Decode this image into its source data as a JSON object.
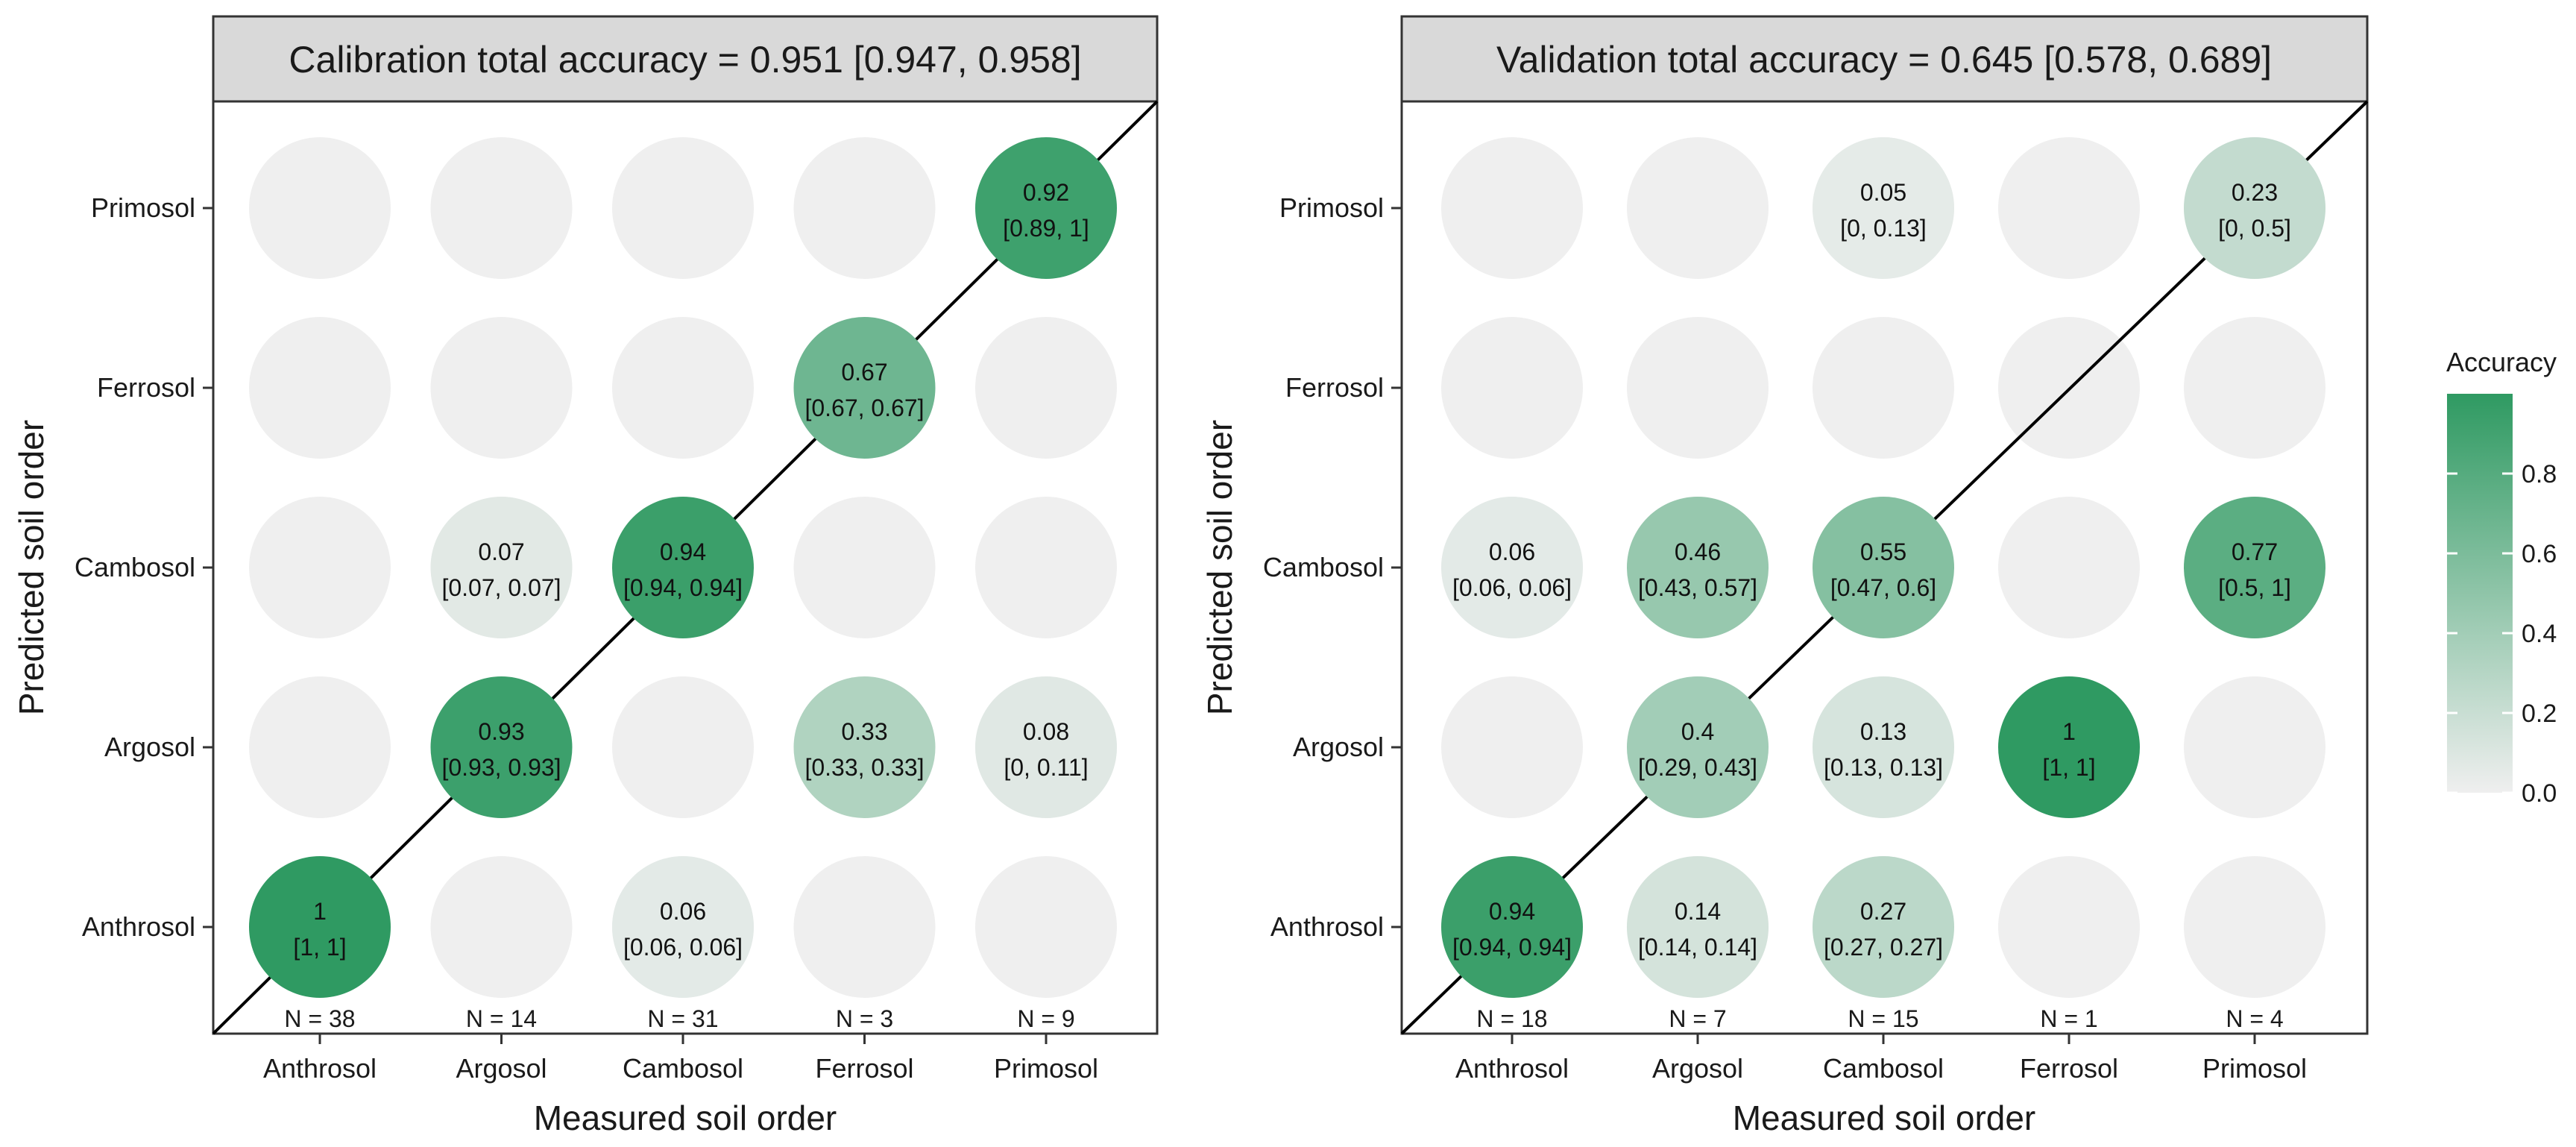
{
  "chart_data": [
    {
      "type": "bubble-confusion-matrix",
      "title": "Calibration total accuracy = 0.951 [0.947, 0.958]",
      "xlabel": "Measured soil order",
      "ylabel": "Predicted soil order",
      "categories": [
        "Anthrosol",
        "Argosol",
        "Cambosol",
        "Ferrosol",
        "Primosol"
      ],
      "n_labels": [
        "N = 38",
        "N = 14",
        "N = 31",
        "N = 3",
        "N = 9"
      ],
      "cells": [
        {
          "measured": "Anthrosol",
          "predicted": "Anthrosol",
          "value": 1,
          "label": "1",
          "ci": "[1, 1]"
        },
        {
          "measured": "Argosol",
          "predicted": "Argosol",
          "value": 0.93,
          "label": "0.93",
          "ci": "[0.93, 0.93]"
        },
        {
          "measured": "Argosol",
          "predicted": "Cambosol",
          "value": 0.07,
          "label": "0.07",
          "ci": "[0.07, 0.07]"
        },
        {
          "measured": "Cambosol",
          "predicted": "Anthrosol",
          "value": 0.06,
          "label": "0.06",
          "ci": "[0.06, 0.06]"
        },
        {
          "measured": "Cambosol",
          "predicted": "Cambosol",
          "value": 0.94,
          "label": "0.94",
          "ci": "[0.94, 0.94]"
        },
        {
          "measured": "Ferrosol",
          "predicted": "Argosol",
          "value": 0.33,
          "label": "0.33",
          "ci": "[0.33, 0.33]"
        },
        {
          "measured": "Ferrosol",
          "predicted": "Ferrosol",
          "value": 0.67,
          "label": "0.67",
          "ci": "[0.67, 0.67]"
        },
        {
          "measured": "Primosol",
          "predicted": "Argosol",
          "value": 0.08,
          "label": "0.08",
          "ci": "[0, 0.11]"
        },
        {
          "measured": "Primosol",
          "predicted": "Primosol",
          "value": 0.92,
          "label": "0.92",
          "ci": "[0.89, 1]"
        }
      ]
    },
    {
      "type": "bubble-confusion-matrix",
      "title": "Validation total accuracy = 0.645 [0.578, 0.689]",
      "xlabel": "Measured soil order",
      "ylabel": "Predicted soil order",
      "categories": [
        "Anthrosol",
        "Argosol",
        "Cambosol",
        "Ferrosol",
        "Primosol"
      ],
      "n_labels": [
        "N = 18",
        "N = 7",
        "N = 15",
        "N = 1",
        "N = 4"
      ],
      "cells": [
        {
          "measured": "Anthrosol",
          "predicted": "Anthrosol",
          "value": 0.94,
          "label": "0.94",
          "ci": "[0.94, 0.94]"
        },
        {
          "measured": "Anthrosol",
          "predicted": "Cambosol",
          "value": 0.06,
          "label": "0.06",
          "ci": "[0.06, 0.06]"
        },
        {
          "measured": "Argosol",
          "predicted": "Anthrosol",
          "value": 0.14,
          "label": "0.14",
          "ci": "[0.14, 0.14]"
        },
        {
          "measured": "Argosol",
          "predicted": "Argosol",
          "value": 0.4,
          "label": "0.4",
          "ci": "[0.29, 0.43]"
        },
        {
          "measured": "Argosol",
          "predicted": "Cambosol",
          "value": 0.46,
          "label": "0.46",
          "ci": "[0.43, 0.57]"
        },
        {
          "measured": "Cambosol",
          "predicted": "Anthrosol",
          "value": 0.27,
          "label": "0.27",
          "ci": "[0.27, 0.27]"
        },
        {
          "measured": "Cambosol",
          "predicted": "Argosol",
          "value": 0.13,
          "label": "0.13",
          "ci": "[0.13, 0.13]"
        },
        {
          "measured": "Cambosol",
          "predicted": "Cambosol",
          "value": 0.55,
          "label": "0.55",
          "ci": "[0.47, 0.6]"
        },
        {
          "measured": "Cambosol",
          "predicted": "Primosol",
          "value": 0.05,
          "label": "0.05",
          "ci": "[0, 0.13]"
        },
        {
          "measured": "Ferrosol",
          "predicted": "Argosol",
          "value": 1,
          "label": "1",
          "ci": "[1, 1]"
        },
        {
          "measured": "Primosol",
          "predicted": "Cambosol",
          "value": 0.77,
          "label": "0.77",
          "ci": "[0.5, 1]"
        },
        {
          "measured": "Primosol",
          "predicted": "Primosol",
          "value": 0.23,
          "label": "0.23",
          "ci": "[0, 0.5]"
        }
      ]
    }
  ],
  "legend": {
    "title": "Accuracy",
    "ticks": [
      "0.0",
      "0.2",
      "0.4",
      "0.6",
      "0.8"
    ],
    "tick_values": [
      0,
      0.2,
      0.4,
      0.6,
      0.8
    ],
    "range": [
      0,
      1
    ],
    "color_low": "#efefef",
    "color_high": "#2f9a62"
  },
  "colors": {
    "empty_bubble": "#efefef",
    "title_strip": "#d9d9d9",
    "frame": "#333333",
    "axis_text": "#1a1a1a"
  }
}
